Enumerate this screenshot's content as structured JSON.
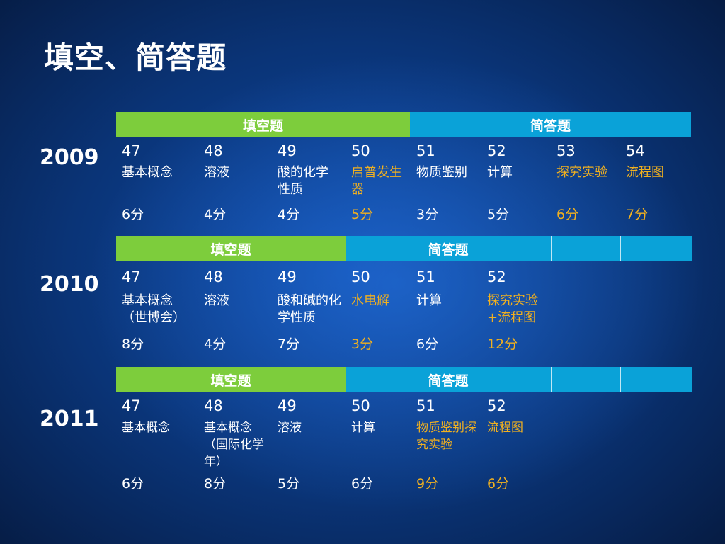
{
  "slide_title": "填空、简答题",
  "colors": {
    "fill_header": "#7dcd3c",
    "short_header": "#0aa2d8",
    "highlight": "#f0b020"
  },
  "years": [
    {
      "year": "2009",
      "fill_header": "填空题",
      "short_header": "简答题",
      "questions": [
        {
          "num": "47",
          "topic": "基本概念",
          "score": "6分"
        },
        {
          "num": "48",
          "topic": "溶液",
          "score": "4分"
        },
        {
          "num": "49",
          "topic": "酸的化学性质",
          "score": "4分"
        },
        {
          "num": "50",
          "topic": "启普发生器",
          "score": "5分"
        },
        {
          "num": "51",
          "topic": "物质鉴别",
          "score": "3分"
        },
        {
          "num": "52",
          "topic": "计算",
          "score": "5分"
        },
        {
          "num": "53",
          "topic": "探究实验",
          "score": "6分"
        },
        {
          "num": "54",
          "topic": "流程图",
          "score": "7分"
        }
      ]
    },
    {
      "year": "2010",
      "fill_header": "填空题",
      "short_header": "简答题",
      "questions": [
        {
          "num": "47",
          "topic": "基本概念（世博会）",
          "score": "8分"
        },
        {
          "num": "48",
          "topic": "溶液",
          "score": "4分"
        },
        {
          "num": "49",
          "topic": "酸和碱的化学性质",
          "score": "7分"
        },
        {
          "num": "50",
          "topic": "水电解",
          "score": "3分"
        },
        {
          "num": "51",
          "topic": "计算",
          "score": "6分"
        },
        {
          "num": "52",
          "topic": "探究实验+流程图",
          "score": "12分"
        }
      ]
    },
    {
      "year": "2011",
      "fill_header": "填空题",
      "short_header": "简答题",
      "questions": [
        {
          "num": "47",
          "topic": "基本概念",
          "score": "6分"
        },
        {
          "num": "48",
          "topic": "基本概念（国际化学年）",
          "score": "8分"
        },
        {
          "num": "49",
          "topic": "溶液",
          "score": "5分"
        },
        {
          "num": "50",
          "topic": "计算",
          "score": "6分"
        },
        {
          "num": "51",
          "topic": "物质鉴别探究实验",
          "score": "9分"
        },
        {
          "num": "52",
          "topic": "流程图",
          "score": "6分"
        }
      ]
    }
  ]
}
